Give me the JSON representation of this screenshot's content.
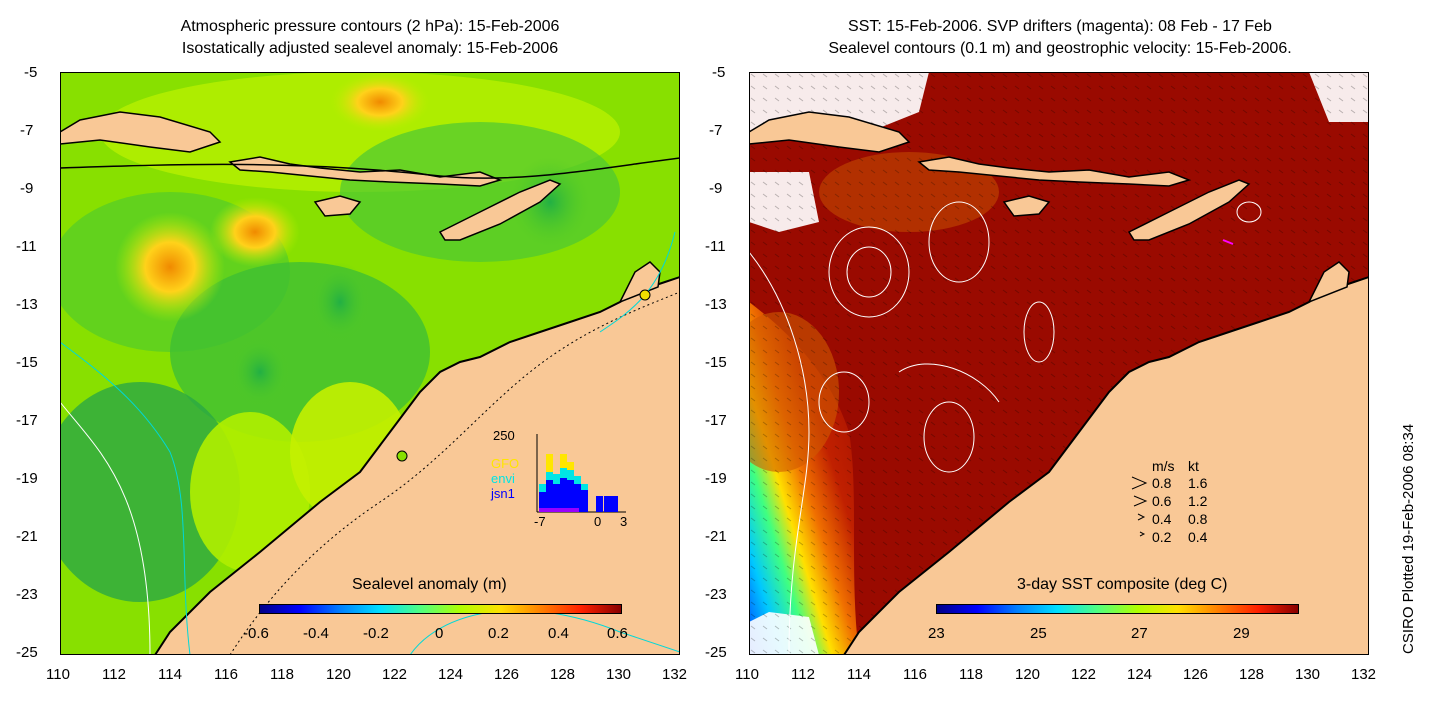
{
  "left_panel": {
    "title_line1": "Atmospheric pressure contours (2 hPa): 15-Feb-2006",
    "title_line2": "Isostatically adjusted sealevel anomaly: 15-Feb-2006",
    "colorbar_title": "Sealevel anomaly (m)",
    "colorbar_ticks": [
      "-0.6",
      "-0.4",
      "-0.2",
      "0",
      "0.2",
      "0.4",
      "0.6"
    ],
    "inset": {
      "max_label": "250",
      "legend": [
        {
          "name": "GFO",
          "color": "#ffe600"
        },
        {
          "name": "envi",
          "color": "#00e5e5"
        },
        {
          "name": "jsn1",
          "color": "#0000ff"
        }
      ],
      "x_ticks": [
        "-7",
        "0",
        "3"
      ]
    }
  },
  "right_panel": {
    "title_line1": "SST: 15-Feb-2006. SVP drifters (magenta): 08 Feb - 17 Feb",
    "title_line2": "Sealevel contours (0.1 m) and geostrophic velocity: 15-Feb-2006.",
    "colorbar_title": "3-day SST composite (deg C)",
    "colorbar_ticks": [
      "23",
      "25",
      "27",
      "29"
    ],
    "velocity_key": {
      "header_ms": "m/s",
      "header_kt": "kt",
      "rows": [
        {
          "ms": "0.8",
          "kt": "1.6"
        },
        {
          "ms": "0.6",
          "kt": "1.2"
        },
        {
          "ms": "0.4",
          "kt": "0.8"
        },
        {
          "ms": "0.2",
          "kt": "0.4"
        }
      ]
    }
  },
  "axes": {
    "lat_ticks": [
      "-5",
      "-7",
      "-9",
      "-11",
      "-13",
      "-15",
      "-17",
      "-19",
      "-21",
      "-23",
      "-25"
    ],
    "lon_ticks": [
      "110",
      "112",
      "114",
      "116",
      "118",
      "120",
      "122",
      "124",
      "126",
      "128",
      "130",
      "132"
    ]
  },
  "credit": "CSIRO Plotted 19-Feb-2006 08:34",
  "colors": {
    "land": "#f9c896",
    "sst_warm": "#9a0a00",
    "sla_green": "#66d800"
  }
}
